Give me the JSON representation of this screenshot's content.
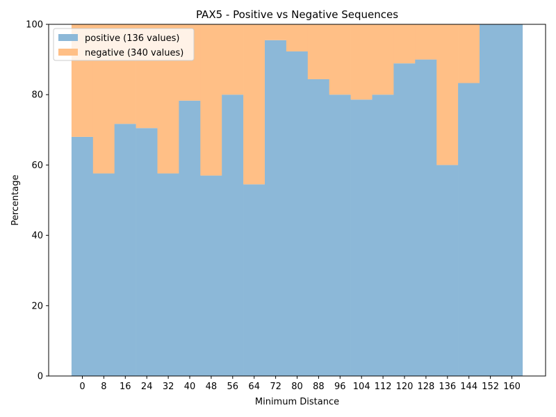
{
  "chart_data": {
    "type": "bar",
    "stacked": true,
    "title": "PAX5 - Positive vs Negative Sequences",
    "xlabel": "Minimum Distance",
    "ylabel": "Percentage",
    "ylim": [
      0,
      100
    ],
    "yticks": [
      0,
      20,
      40,
      60,
      80,
      100
    ],
    "categories": [
      "0",
      "8",
      "16",
      "24",
      "32",
      "40",
      "48",
      "56",
      "64",
      "72",
      "80",
      "88",
      "96",
      "104",
      "112",
      "120",
      "128",
      "136",
      "144",
      "152",
      "160"
    ],
    "series": [
      {
        "name": "positive (136 values)",
        "color": "#8cb8d8",
        "values": [
          68,
          57.6,
          71.7,
          70.5,
          57.6,
          78.3,
          57,
          80,
          54.5,
          95.5,
          92.3,
          84.4,
          80,
          78.6,
          80,
          88.9,
          90,
          60,
          83.3,
          100,
          100
        ]
      },
      {
        "name": "negative (340 values)",
        "color": "#ffbf86",
        "values": [
          32,
          42.4,
          28.3,
          29.5,
          42.4,
          21.7,
          43,
          20,
          45.5,
          4.5,
          7.7,
          15.6,
          20,
          21.4,
          20,
          11.1,
          10,
          40,
          16.7,
          0,
          0
        ]
      }
    ],
    "legend_position": "top-left",
    "grid": false
  }
}
